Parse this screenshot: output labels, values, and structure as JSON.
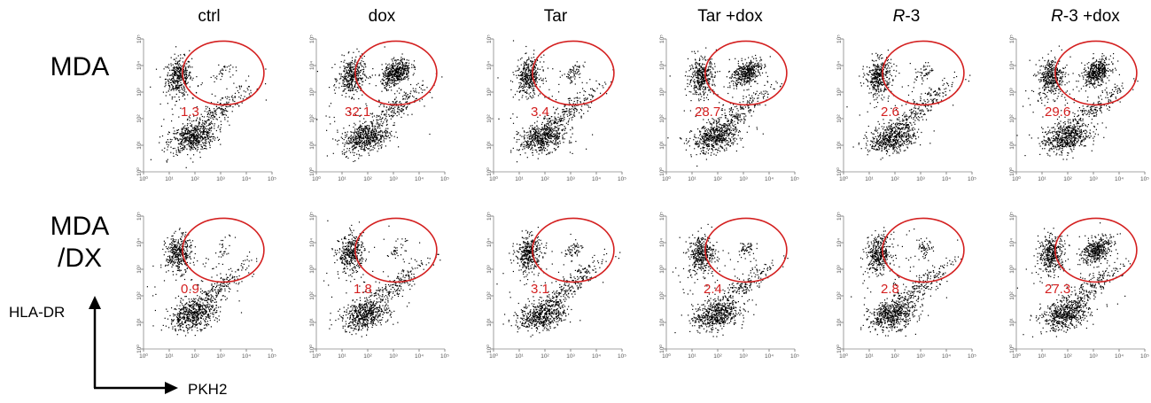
{
  "columns": [
    {
      "name": "ctrl",
      "italic_prefix": ""
    },
    {
      "name": "dox",
      "italic_prefix": ""
    },
    {
      "name": "Tar",
      "italic_prefix": ""
    },
    {
      "name": "Tar +dox",
      "italic_prefix": ""
    },
    {
      "name": "-3",
      "italic_prefix": "R"
    },
    {
      "name": "-3 +dox",
      "italic_prefix": "R"
    }
  ],
  "rows": [
    {
      "label_line1": "MDA",
      "label_line2": ""
    },
    {
      "label_line1": "MDA",
      "label_line2": "/DX"
    }
  ],
  "axes": {
    "y_label": "HLA-DR",
    "x_label": "PKH2"
  },
  "colors": {
    "gate": "#d42020",
    "dots": "#000000",
    "axis": "#888888"
  },
  "chart_data": {
    "type": "scatter",
    "x_scale": "log",
    "y_scale": "log",
    "xlim": [
      1,
      100000
    ],
    "ylim": [
      1,
      100000
    ],
    "x_ticks": [
      "10⁰",
      "10¹",
      "10²",
      "10³",
      "10⁴",
      "10⁵"
    ],
    "y_ticks": [
      "10⁰",
      "10¹",
      "10²",
      "10³",
      "10⁴",
      "10⁵"
    ],
    "gate_shape": "ellipse",
    "gate_percentages": [
      [
        1.3,
        32.1,
        3.4,
        28.7,
        2.6,
        29.6
      ],
      [
        0.9,
        1.8,
        3.1,
        2.4,
        2.8,
        27.3
      ]
    ]
  }
}
